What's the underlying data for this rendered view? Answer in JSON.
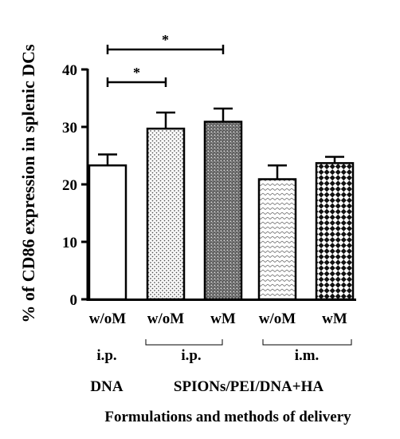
{
  "chart_data": {
    "type": "bar",
    "ylabel": "% of CD86 expression in splenic DCs",
    "xlabel": "Formulations and methods of delivery",
    "ylim": [
      0,
      40
    ],
    "yticks": [
      "0",
      "10",
      "20",
      "30",
      "40"
    ],
    "categories": [
      "w/oM",
      "w/oM",
      "wM",
      "w/oM",
      "wM"
    ],
    "values": [
      23.3,
      29.7,
      30.9,
      20.9,
      23.7
    ],
    "errors": [
      1.9,
      2.8,
      2.3,
      2.4,
      1.1
    ],
    "fills": [
      "white",
      "dots",
      "crosshatch",
      "chevron",
      "checker"
    ],
    "route_labels": [
      "i.p.",
      "i.p.",
      "i.m."
    ],
    "group_labels": [
      "DNA",
      "SPIONs/PEI/DNA+HA"
    ],
    "significance": [
      {
        "from": 0,
        "to": 1,
        "label": "*"
      },
      {
        "from": 0,
        "to": 2,
        "label": "*"
      }
    ],
    "grid": false,
    "legend": "none"
  }
}
